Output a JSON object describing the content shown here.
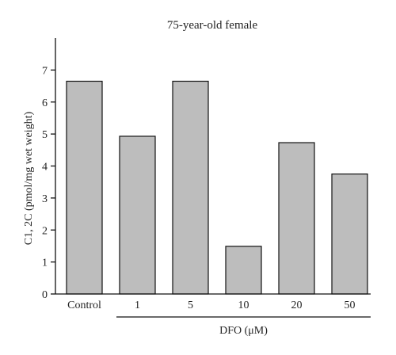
{
  "chart_data": {
    "type": "bar",
    "title": "75-year-old female",
    "ylabel": "C1, 2C (pmol/mg wet weight)",
    "xgroup_label": "DFO (μM)",
    "categories": [
      "Control",
      "1",
      "5",
      "10",
      "20",
      "50"
    ],
    "values": [
      6.65,
      4.93,
      6.65,
      1.49,
      4.73,
      3.75
    ],
    "ylim": [
      0,
      8
    ],
    "yticks": [
      0,
      1,
      2,
      3,
      4,
      5,
      6,
      7
    ],
    "grid": false,
    "legend": "none",
    "bar_color": "#bdbdbd",
    "grouped_categories": [
      "1",
      "5",
      "10",
      "20",
      "50"
    ]
  }
}
